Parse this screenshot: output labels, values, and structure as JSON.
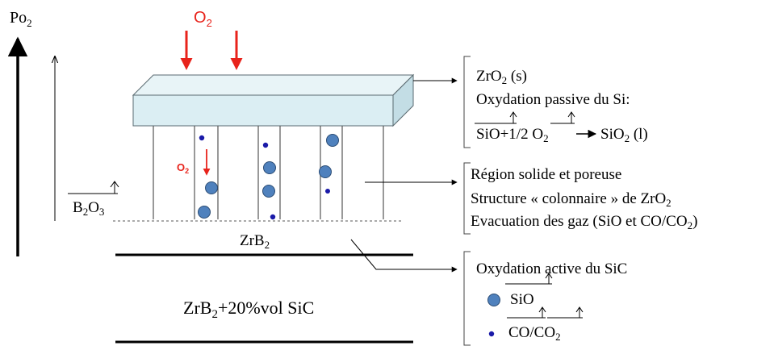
{
  "axis": {
    "po2_main": "Po",
    "po2_sub": "2"
  },
  "o2_top": {
    "main": "O",
    "sub": "2"
  },
  "o2_inner": {
    "main": "O",
    "sub": "2"
  },
  "b2o3": {
    "p1": "B",
    "s1": "2",
    "p2": "O",
    "s2": "3"
  },
  "zrb2_layer": {
    "main": "ZrB",
    "sub": "2"
  },
  "substrate": {
    "p1": "ZrB",
    "s1": "2",
    "p2": "+20%vol SiC"
  },
  "box1": {
    "line1_main": "ZrO",
    "line1_sub": "2",
    "line1_tail": " (s)",
    "line2": "Oxydation passive du Si:",
    "eq_sio": "SiO",
    "eq_mid": "+1/2 ",
    "eq_o": "O",
    "eq_o_sub": "2",
    "eq_product": "SiO",
    "eq_product_sub": "2",
    "eq_tail": " (l)"
  },
  "box2": {
    "line1": "Région solide et poreuse",
    "line2_main": "Structure « colonnaire » de ZrO",
    "line2_sub": "2",
    "line3_main": "Evacuation des gaz (SiO et CO/CO",
    "line3_sub": "2",
    "line3_tail": ")"
  },
  "box3": {
    "line1": "Oxydation active du SiC",
    "legend_sio": "SiO",
    "legend_co_main": "CO/CO",
    "legend_co_sub": "2"
  },
  "colors": {
    "o2_red": "#e8231b",
    "oxide_fill": "#dbeef3",
    "bubble_fill": "#4f81bd",
    "bubble_dot": "#1a1aa8"
  }
}
